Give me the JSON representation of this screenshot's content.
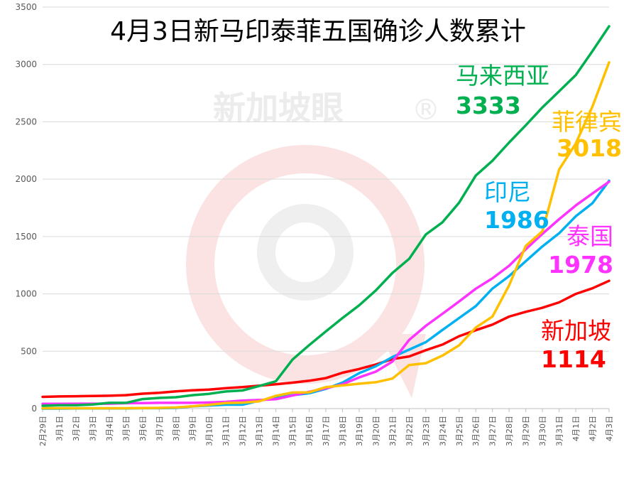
{
  "chart_data": {
    "type": "line",
    "title": "4月3日新马印泰菲五国确诊人数累计",
    "xlabel": "",
    "ylabel": "",
    "ylim": [
      0,
      3500
    ],
    "yticks": [
      0,
      500,
      1000,
      1500,
      2000,
      2500,
      3000,
      3500
    ],
    "grid": true,
    "legend": "inline-labels",
    "categories": [
      "2月29日",
      "3月1日",
      "3月2日",
      "3月3日",
      "3月4日",
      "3月5日",
      "3月6日",
      "3月7日",
      "3月8日",
      "3月9日",
      "3月10日",
      "3月11日",
      "3月12日",
      "3月13日",
      "3月14日",
      "3月15日",
      "3月16日",
      "3月17日",
      "3月18日",
      "3月19日",
      "3月20日",
      "3月21日",
      "3月22日",
      "3月23日",
      "3月24日",
      "3月25日",
      "3月26日",
      "3月27日",
      "3月28日",
      "3月29日",
      "3月30日",
      "3月31日",
      "4月1日",
      "4月2日",
      "4月3日"
    ],
    "series": [
      {
        "name": "马来西亚",
        "label_value": "3333",
        "color": "#00b050",
        "values": [
          25,
          29,
          29,
          36,
          50,
          50,
          83,
          93,
          99,
          117,
          129,
          149,
          158,
          197,
          238,
          428,
          553,
          673,
          790,
          900,
          1030,
          1183,
          1306,
          1518,
          1624,
          1796,
          2031,
          2161,
          2320,
          2470,
          2626,
          2766,
          2908,
          3116,
          3333
        ]
      },
      {
        "name": "菲律宾",
        "label_value": "3018",
        "color": "#ffc000",
        "values": [
          3,
          3,
          3,
          3,
          3,
          3,
          5,
          6,
          10,
          20,
          33,
          49,
          52,
          64,
          111,
          140,
          142,
          187,
          202,
          217,
          230,
          262,
          380,
          396,
          462,
          552,
          707,
          803,
          1075,
          1418,
          1546,
          2084,
          2311,
          2633,
          3018
        ]
      },
      {
        "name": "印尼",
        "label_value": "1986",
        "color": "#00b0f0",
        "values": [
          0,
          0,
          2,
          2,
          2,
          2,
          4,
          4,
          6,
          19,
          27,
          34,
          34,
          69,
          96,
          117,
          134,
          172,
          227,
          309,
          369,
          450,
          514,
          579,
          686,
          790,
          893,
          1046,
          1155,
          1285,
          1414,
          1528,
          1677,
          1790,
          1986
        ]
      },
      {
        "name": "泰国",
        "label_value": "1978",
        "color": "#ff33ff",
        "values": [
          42,
          42,
          43,
          43,
          43,
          47,
          48,
          50,
          50,
          50,
          53,
          59,
          70,
          75,
          82,
          114,
          147,
          177,
          212,
          272,
          322,
          411,
          599,
          721,
          827,
          934,
          1045,
          1136,
          1245,
          1388,
          1524,
          1651,
          1771,
          1875,
          1978
        ]
      },
      {
        "name": "新加坡",
        "label_value": "1114",
        "color": "#ff0000",
        "values": [
          102,
          106,
          108,
          110,
          112,
          117,
          130,
          138,
          150,
          160,
          166,
          178,
          187,
          200,
          212,
          226,
          243,
          266,
          313,
          345,
          385,
          432,
          455,
          509,
          558,
          631,
          683,
          732,
          802,
          844,
          879,
          926,
          1000,
          1049,
          1114
        ]
      }
    ]
  },
  "watermark": {
    "text": "新加坡眼",
    "mark": "®",
    "accent": "#f6c9c9",
    "muted": "#ececec"
  }
}
